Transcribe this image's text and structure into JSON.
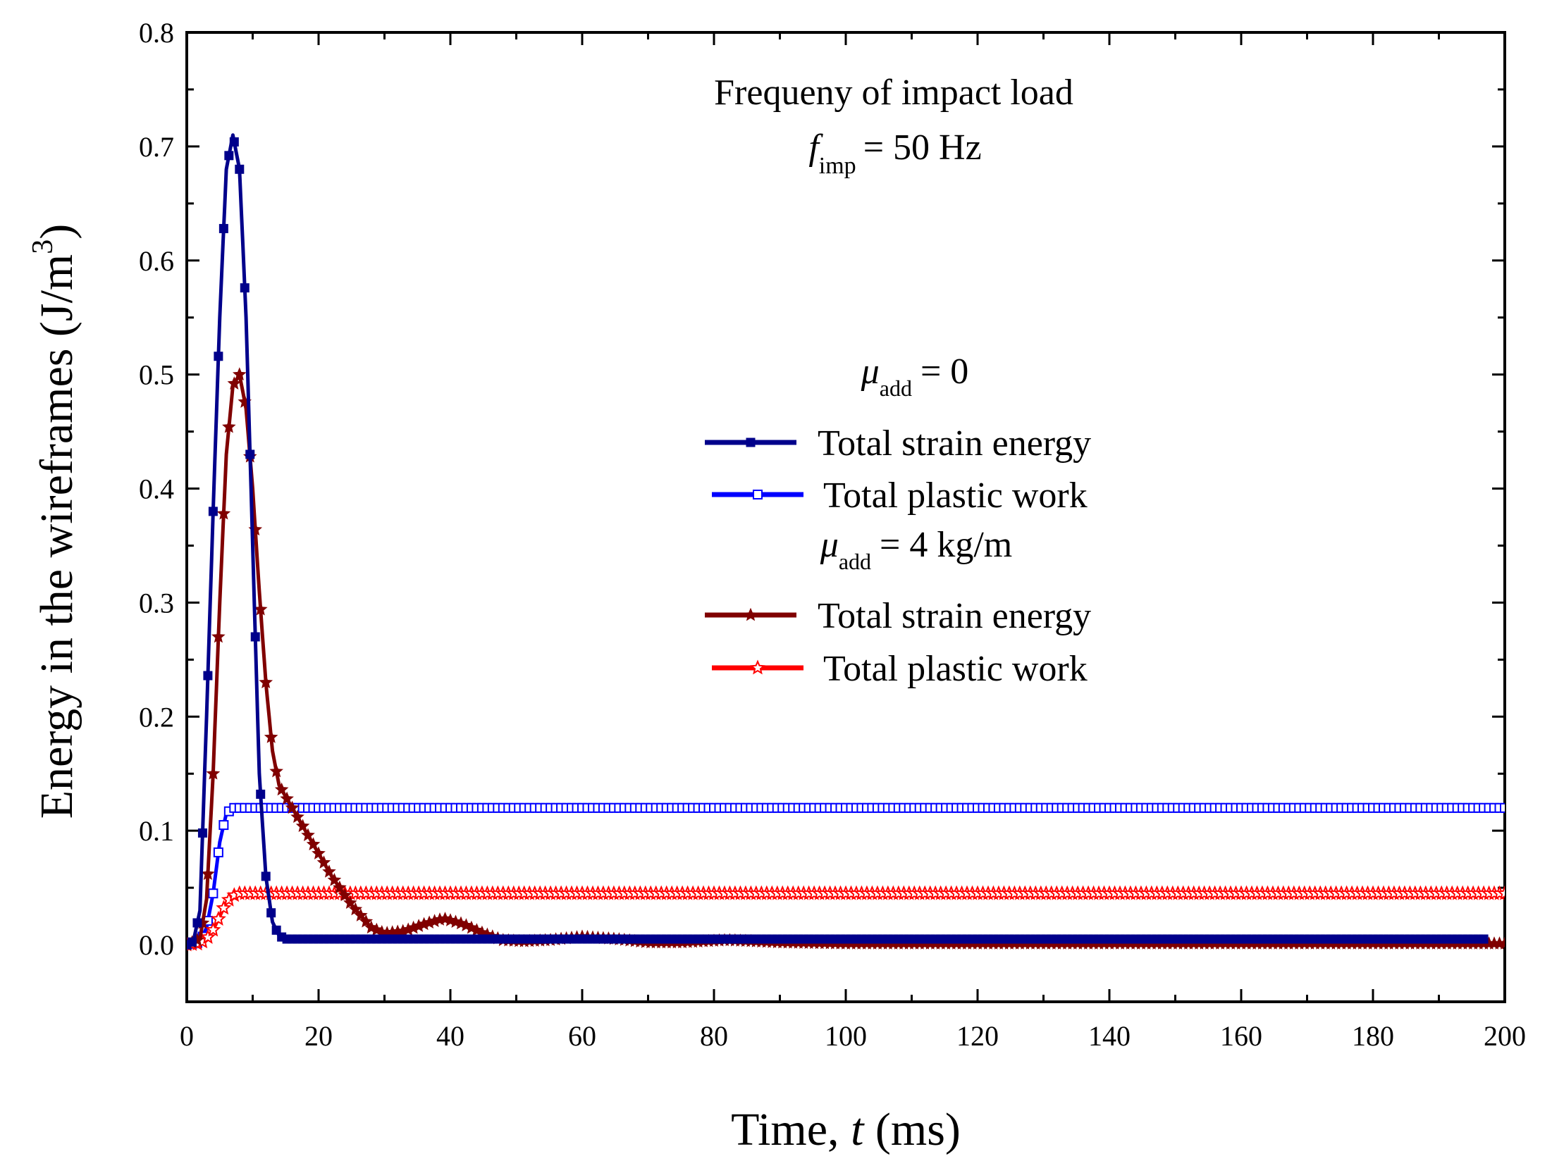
{
  "chart_data": {
    "type": "line",
    "xlabel": {
      "prefix": "Time, ",
      "var": "t",
      "suffix": " (ms)"
    },
    "ylabel": {
      "main": "Energy in the wireframes (J/m",
      "sup": "3",
      "close": ")"
    },
    "xlim": [
      0,
      200
    ],
    "ylim": [
      -0.05,
      0.8
    ],
    "xticks": [
      0,
      20,
      40,
      60,
      80,
      100,
      120,
      140,
      160,
      180,
      200
    ],
    "yticks": [
      0.0,
      0.1,
      0.2,
      0.3,
      0.4,
      0.5,
      0.6,
      0.7,
      0.8
    ],
    "xtick_labels": [
      "0",
      "20",
      "40",
      "60",
      "80",
      "100",
      "120",
      "140",
      "160",
      "180",
      "200"
    ],
    "ytick_labels": [
      "0.0",
      "0.1",
      "0.2",
      "0.3",
      "0.4",
      "0.5",
      "0.6",
      "0.7",
      "0.8"
    ],
    "annotation": {
      "line1": "Frequeny of impact load",
      "f": "f",
      "f_sub": "imp",
      "f_rest": "= 50 Hz"
    },
    "legend": {
      "group1": {
        "mu": "μ",
        "sub": "add",
        "rest": "= 0"
      },
      "group2": {
        "mu": "μ",
        "sub": "add",
        "rest": "= 4 kg/m"
      }
    },
    "series": [
      {
        "name": "Total strain energy",
        "group": "μadd = 0",
        "color": "#00008B",
        "marker": "square-filled",
        "x": [
          0,
          1,
          2,
          3,
          4,
          5,
          6,
          7,
          8,
          9,
          10,
          11,
          12,
          13,
          14,
          15,
          16,
          18,
          20,
          30,
          50,
          100,
          150,
          197
        ],
        "y": [
          0,
          0.003,
          0.03,
          0.2,
          0.38,
          0.55,
          0.68,
          0.71,
          0.68,
          0.55,
          0.35,
          0.15,
          0.06,
          0.02,
          0.008,
          0.005,
          0.005,
          0.005,
          0.005,
          0.005,
          0.005,
          0.005,
          0.005,
          0.005
        ]
      },
      {
        "name": "Total plastic work",
        "group": "μadd = 0",
        "color": "#0000FF",
        "marker": "square-open",
        "x": [
          0,
          2,
          3,
          4,
          5,
          6,
          7,
          8,
          10,
          20,
          50,
          100,
          150,
          200
        ],
        "y": [
          0,
          0.002,
          0.015,
          0.045,
          0.09,
          0.115,
          0.12,
          0.12,
          0.12,
          0.12,
          0.12,
          0.12,
          0.12,
          0.12
        ]
      },
      {
        "name": "Total strain energy",
        "group": "μadd = 4 kg/m",
        "color": "#800000",
        "marker": "star-filled",
        "x": [
          0,
          2,
          3,
          4,
          5,
          6,
          7,
          8,
          9,
          10,
          11,
          12,
          13,
          14,
          16,
          18,
          20,
          22,
          25,
          28,
          30,
          33,
          36,
          39,
          42,
          45,
          48,
          51,
          55,
          60,
          65,
          70,
          75,
          82,
          90,
          100,
          120,
          150,
          200
        ],
        "y": [
          0,
          0.005,
          0.04,
          0.15,
          0.3,
          0.43,
          0.49,
          0.5,
          0.47,
          0.4,
          0.31,
          0.23,
          0.17,
          0.14,
          0.12,
          0.1,
          0.08,
          0.06,
          0.035,
          0.015,
          0.01,
          0.012,
          0.018,
          0.023,
          0.018,
          0.01,
          0.004,
          0.003,
          0.004,
          0.007,
          0.005,
          0.002,
          0.002,
          0.004,
          0.002,
          0.001,
          0.001,
          0.001,
          0.001
        ]
      },
      {
        "name": "Total plastic work",
        "group": "μadd = 4 kg/m",
        "color": "#FF0000",
        "marker": "star-open",
        "x": [
          0,
          2,
          3,
          4,
          5,
          6,
          7,
          8,
          9,
          10,
          20,
          50,
          100,
          150,
          200
        ],
        "y": [
          0,
          0.001,
          0.005,
          0.013,
          0.025,
          0.037,
          0.043,
          0.045,
          0.045,
          0.045,
          0.045,
          0.045,
          0.045,
          0.045,
          0.045
        ]
      }
    ]
  }
}
